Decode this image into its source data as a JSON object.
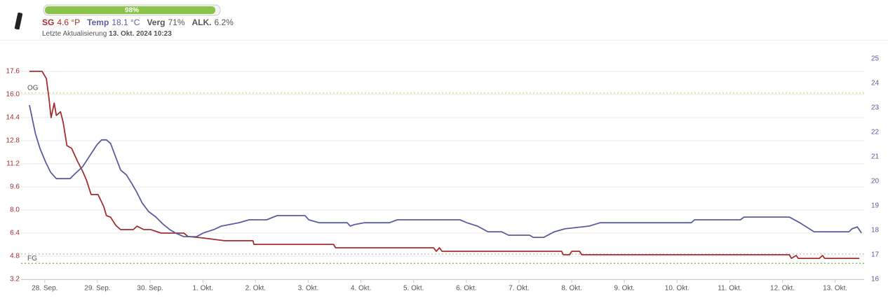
{
  "header": {
    "progress": {
      "value": 98,
      "label": "98%"
    },
    "readings": [
      {
        "name": "SG",
        "value": "4.6 °P",
        "color": "#a3302f"
      },
      {
        "name": "Temp",
        "value": "18.1 °C",
        "color": "#5b5e9e"
      },
      {
        "name": "Verg",
        "value": "71%",
        "color": "#555555"
      },
      {
        "name": "ALK.",
        "value": "6.2%",
        "color": "#555555"
      }
    ],
    "updated_label": "Letzte Aktualisierung",
    "updated_value": "13. Okt. 2024 10:23"
  },
  "chart_data": {
    "type": "line",
    "xlim": [
      -0.45,
      15.55
    ],
    "xticks": [
      {
        "value": 0,
        "label": "28. Sep."
      },
      {
        "value": 1,
        "label": "29. Sep."
      },
      {
        "value": 2,
        "label": "30. Sep."
      },
      {
        "value": 3,
        "label": "1. Okt."
      },
      {
        "value": 4,
        "label": "2. Okt."
      },
      {
        "value": 5,
        "label": "3. Okt."
      },
      {
        "value": 6,
        "label": "4. Okt."
      },
      {
        "value": 7,
        "label": "5. Okt."
      },
      {
        "value": 8,
        "label": "6. Okt."
      },
      {
        "value": 9,
        "label": "7. Okt."
      },
      {
        "value": 10,
        "label": "8. Okt."
      },
      {
        "value": 11,
        "label": "9. Okt."
      },
      {
        "value": 12,
        "label": "10. Okt."
      },
      {
        "value": 13,
        "label": "11. Okt."
      },
      {
        "value": 14,
        "label": "12. Okt."
      },
      {
        "value": 15,
        "label": "13. Okt."
      }
    ],
    "ylim": [
      3.2,
      18.47
    ],
    "yticks": [
      3.2,
      4.8,
      6.4,
      {
        "value": 8,
        "label": "8.0"
      },
      9.6,
      11.2,
      12.8,
      14.4,
      {
        "value": 16,
        "label": "16.0"
      },
      17.6
    ],
    "y2lim": [
      16,
      25
    ],
    "y2ticks": [
      16,
      17,
      18,
      19,
      20,
      21,
      22,
      23,
      24,
      25
    ],
    "grid": true,
    "reference_lines": [
      {
        "label": "OG",
        "value": 16.1,
        "color": "#dedc8a"
      },
      {
        "value": 4.95,
        "color": "#c8c8c8"
      },
      {
        "label": "FG",
        "value": 4.3,
        "color": "#8bc34a"
      }
    ],
    "series": [
      {
        "color": "#a3302f",
        "x": [
          -0.29,
          -0.05,
          0.03,
          0.08,
          0.12,
          0.18,
          0.22,
          0.3,
          0.35,
          0.42,
          0.51,
          0.62,
          0.72,
          0.79,
          0.88,
          1.01,
          1.12,
          1.17,
          1.25,
          1.35,
          1.44,
          1.68,
          1.75,
          1.88,
          2.01,
          2.21,
          2.64,
          2.72,
          3.01,
          3.41,
          3.95,
          3.97,
          5.48,
          5.52,
          7.38,
          7.43,
          7.49,
          7.54,
          9.81,
          9.84,
          9.96,
          10.0,
          10.15,
          10.19,
          14.13,
          14.17,
          14.26,
          14.3,
          14.7,
          14.76,
          14.8,
          15.46
        ],
        "values": [
          17.6,
          17.6,
          17.1,
          15.75,
          14.4,
          15.4,
          14.55,
          14.8,
          14.06,
          12.46,
          12.27,
          11.39,
          10.67,
          10.08,
          9.07,
          9.07,
          8.24,
          7.61,
          7.5,
          6.93,
          6.64,
          6.64,
          6.88,
          6.64,
          6.64,
          6.4,
          6.4,
          6.16,
          6.06,
          5.87,
          5.87,
          5.62,
          5.62,
          5.38,
          5.38,
          5.14,
          5.38,
          5.14,
          5.14,
          4.9,
          4.9,
          5.14,
          5.14,
          4.9,
          4.9,
          4.65,
          4.85,
          4.65,
          4.65,
          4.85,
          4.65,
          4.65
        ]
      },
      {
        "color": "#5b5e9e",
        "axis": "y2",
        "x": [
          -0.29,
          -0.18,
          -0.09,
          0.02,
          0.11,
          0.22,
          0.48,
          0.59,
          0.72,
          0.86,
          0.99,
          1.08,
          1.17,
          1.25,
          1.35,
          1.44,
          1.55,
          1.65,
          1.75,
          1.85,
          1.97,
          2.11,
          2.24,
          2.37,
          2.48,
          2.64,
          2.88,
          3.01,
          3.21,
          3.35,
          3.68,
          3.88,
          4.21,
          4.41,
          4.94,
          5.01,
          5.21,
          5.74,
          5.8,
          5.87,
          6.06,
          6.54,
          6.69,
          7.88,
          8.01,
          8.21,
          8.41,
          8.67,
          8.8,
          9.2,
          9.27,
          9.47,
          9.67,
          9.87,
          10.33,
          10.54,
          12.27,
          12.33,
          13.2,
          13.27,
          14.13,
          14.33,
          14.6,
          15.26,
          15.32,
          15.42,
          15.5
        ],
        "values": [
          23.11,
          21.97,
          21.34,
          20.77,
          20.37,
          20.11,
          20.11,
          20.34,
          20.6,
          21.06,
          21.49,
          21.69,
          21.69,
          21.54,
          20.97,
          20.46,
          20.26,
          19.91,
          19.54,
          19.11,
          18.77,
          18.54,
          18.26,
          18.03,
          17.89,
          17.74,
          17.74,
          17.89,
          18.03,
          18.17,
          18.31,
          18.43,
          18.43,
          18.6,
          18.6,
          18.43,
          18.31,
          18.31,
          18.17,
          18.23,
          18.31,
          18.31,
          18.43,
          18.43,
          18.31,
          18.17,
          17.94,
          17.94,
          17.8,
          17.8,
          17.71,
          17.71,
          17.94,
          18.06,
          18.17,
          18.31,
          18.31,
          18.43,
          18.43,
          18.54,
          18.54,
          18.31,
          17.94,
          17.94,
          18.06,
          18.14,
          17.89
        ]
      }
    ]
  }
}
